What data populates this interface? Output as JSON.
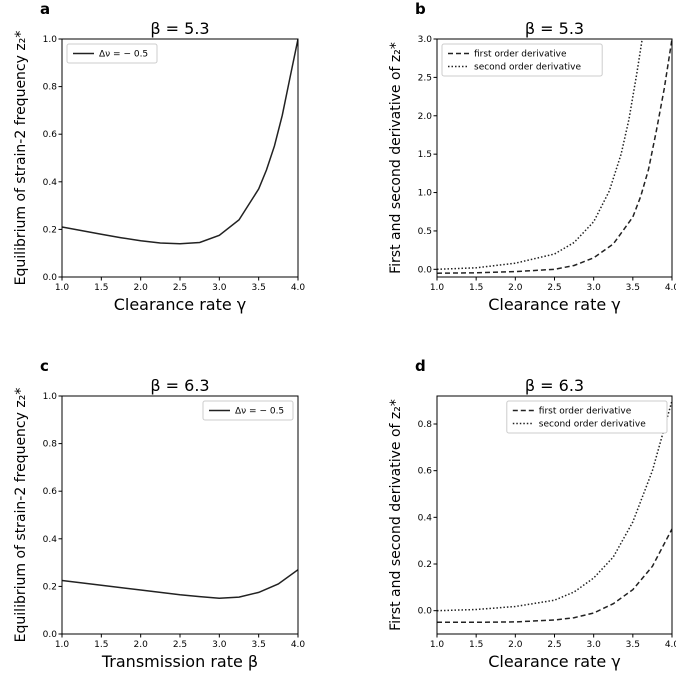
{
  "chart_data": [
    {
      "panel": "a",
      "type": "line",
      "title": "β = 5.3",
      "xlabel": "Clearance rate γ",
      "ylabel": "Equilibrium of strain-2 frequency z₂*",
      "xlim": [
        1.0,
        4.0
      ],
      "ylim": [
        0.0,
        1.0
      ],
      "xticks": [
        "1.0",
        "1.5",
        "2.0",
        "2.5",
        "3.0",
        "3.5",
        "4.0"
      ],
      "yticks": [
        "0.0",
        "0.2",
        "0.4",
        "0.6",
        "0.8",
        "1.0"
      ],
      "legend_position": "top-left",
      "series": [
        {
          "name": "Δν = − 0.5",
          "style": "solid",
          "x": [
            1.0,
            1.25,
            1.5,
            1.75,
            2.0,
            2.25,
            2.5,
            2.75,
            3.0,
            3.25,
            3.5,
            3.6,
            3.7,
            3.8,
            3.9,
            4.0
          ],
          "y": [
            0.21,
            0.195,
            0.18,
            0.165,
            0.152,
            0.143,
            0.14,
            0.145,
            0.175,
            0.24,
            0.37,
            0.45,
            0.55,
            0.68,
            0.84,
            1.0
          ]
        }
      ]
    },
    {
      "panel": "b",
      "type": "line",
      "title": "β = 5.3",
      "xlabel": "Clearance rate γ",
      "ylabel": "First and second derivative of z₂*",
      "xlim": [
        1.0,
        4.0
      ],
      "ylim": [
        -0.1,
        3.0
      ],
      "xticks": [
        "1.0",
        "1.5",
        "2.0",
        "2.5",
        "3.0",
        "3.5",
        "4.0"
      ],
      "yticks": [
        "0.0",
        "0.5",
        "1.0",
        "1.5",
        "2.0",
        "2.5",
        "3.0"
      ],
      "legend_position": "top-left",
      "series": [
        {
          "name": "first order derivative",
          "style": "dashed",
          "x": [
            1.0,
            1.5,
            2.0,
            2.5,
            2.75,
            3.0,
            3.25,
            3.5,
            3.6,
            3.7,
            3.8,
            3.9,
            4.0
          ],
          "y": [
            -0.05,
            -0.045,
            -0.03,
            0.0,
            0.05,
            0.15,
            0.33,
            0.68,
            0.95,
            1.3,
            1.8,
            2.35,
            3.0
          ]
        },
        {
          "name": "second order derivative",
          "style": "dotted",
          "x": [
            1.0,
            1.5,
            2.0,
            2.5,
            2.75,
            3.0,
            3.2,
            3.35,
            3.45,
            3.55,
            3.62
          ],
          "y": [
            0.0,
            0.02,
            0.08,
            0.2,
            0.35,
            0.62,
            1.02,
            1.5,
            1.95,
            2.55,
            3.0
          ]
        }
      ]
    },
    {
      "panel": "c",
      "type": "line",
      "title": "β = 6.3",
      "xlabel": "Transmission rate β",
      "ylabel": "Equilibrium of strain-2 frequency z₂*",
      "xlim": [
        1.0,
        4.0
      ],
      "ylim": [
        0.0,
        1.0
      ],
      "xticks": [
        "1.0",
        "1.5",
        "2.0",
        "2.5",
        "3.0",
        "3.5",
        "4.0"
      ],
      "yticks": [
        "0.0",
        "0.2",
        "0.4",
        "0.6",
        "0.8",
        "1.0"
      ],
      "legend_position": "top-right",
      "series": [
        {
          "name": "Δν = − 0.5",
          "style": "solid",
          "x": [
            1.0,
            1.5,
            2.0,
            2.5,
            2.75,
            3.0,
            3.25,
            3.5,
            3.75,
            4.0
          ],
          "y": [
            0.225,
            0.205,
            0.185,
            0.165,
            0.157,
            0.15,
            0.155,
            0.175,
            0.21,
            0.27
          ]
        }
      ]
    },
    {
      "panel": "d",
      "type": "line",
      "title": "β = 6.3",
      "xlabel": "Clearance rate γ",
      "ylabel": "First and second derivative of z₂*",
      "xlim": [
        1.0,
        4.0
      ],
      "ylim": [
        -0.1,
        0.92
      ],
      "xticks": [
        "1.0",
        "1.5",
        "2.0",
        "2.5",
        "3.0",
        "3.5",
        "4.0"
      ],
      "yticks": [
        "0.0",
        "0.2",
        "0.4",
        "0.6",
        "0.8"
      ],
      "legend_position": "top-right",
      "series": [
        {
          "name": "first order derivative",
          "style": "dashed",
          "x": [
            1.0,
            1.5,
            2.0,
            2.5,
            2.75,
            3.0,
            3.25,
            3.5,
            3.75,
            4.0
          ],
          "y": [
            -0.05,
            -0.05,
            -0.048,
            -0.04,
            -0.03,
            -0.01,
            0.03,
            0.09,
            0.19,
            0.35
          ]
        },
        {
          "name": "second order derivative",
          "style": "dotted",
          "x": [
            1.0,
            1.5,
            2.0,
            2.5,
            2.75,
            3.0,
            3.25,
            3.5,
            3.75,
            4.0
          ],
          "y": [
            0.0,
            0.005,
            0.018,
            0.045,
            0.08,
            0.14,
            0.23,
            0.38,
            0.6,
            0.9
          ]
        }
      ]
    }
  ]
}
